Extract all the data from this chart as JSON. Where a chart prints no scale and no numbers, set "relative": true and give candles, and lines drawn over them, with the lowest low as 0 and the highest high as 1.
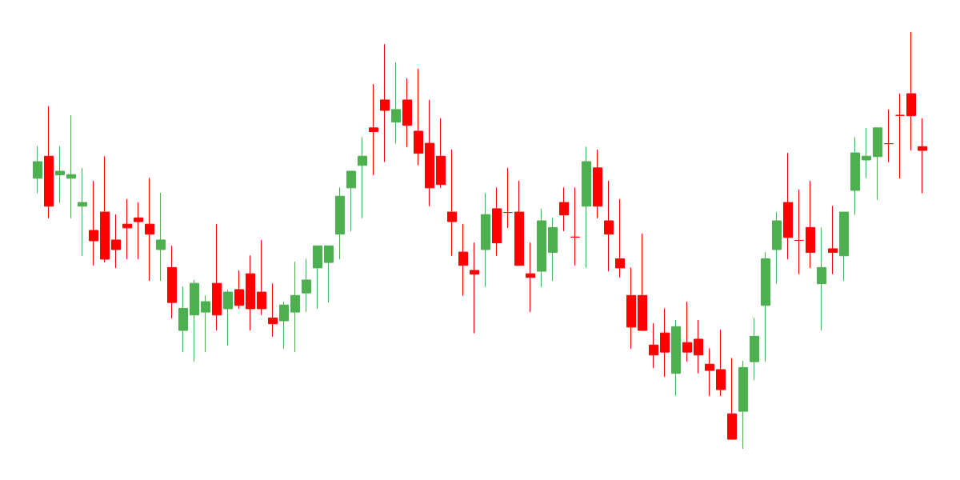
{
  "chart_data": {
    "type": "candlestick",
    "relative": true,
    "grid": false,
    "categories": [
      null,
      null,
      null,
      null,
      null,
      null,
      null,
      null,
      null,
      null,
      null,
      null,
      null,
      null,
      null,
      null,
      null,
      null,
      null,
      null,
      null,
      null,
      null,
      null,
      null,
      null,
      null,
      null,
      null,
      null,
      null,
      null,
      null,
      null,
      null,
      null,
      null,
      null,
      null,
      null,
      null,
      null,
      null,
      null,
      null,
      null,
      null,
      null,
      null,
      null,
      null,
      null,
      null,
      null,
      null,
      null,
      null,
      null,
      null,
      null,
      null,
      null,
      null,
      null,
      null,
      null,
      null,
      null,
      null,
      null,
      null,
      null,
      null,
      null,
      null,
      null,
      null,
      null,
      null,
      null
    ],
    "ohlc": [
      [
        0.649,
        0.726,
        0.613,
        0.689
      ],
      [
        0.702,
        0.822,
        0.553,
        0.582
      ],
      [
        0.657,
        0.726,
        0.59,
        0.666
      ],
      [
        0.649,
        0.8,
        0.553,
        0.658
      ],
      [
        0.582,
        0.674,
        0.463,
        0.591
      ],
      [
        0.524,
        0.643,
        0.44,
        0.499
      ],
      [
        0.568,
        0.702,
        0.447,
        0.455
      ],
      [
        0.501,
        0.562,
        0.434,
        0.478
      ],
      [
        0.539,
        0.599,
        0.455,
        0.53
      ],
      [
        0.554,
        0.591,
        0.455,
        0.545
      ],
      [
        0.539,
        0.65,
        0.403,
        0.515
      ],
      [
        0.478,
        0.614,
        0.403,
        0.501
      ],
      [
        0.435,
        0.487,
        0.313,
        0.351
      ],
      [
        0.284,
        0.389,
        0.232,
        0.337
      ],
      [
        0.321,
        0.405,
        0.209,
        0.397
      ],
      [
        0.328,
        0.368,
        0.232,
        0.353
      ],
      [
        0.397,
        0.539,
        0.284,
        0.321
      ],
      [
        0.336,
        0.382,
        0.248,
        0.376
      ],
      [
        0.382,
        0.428,
        0.336,
        0.344
      ],
      [
        0.42,
        0.464,
        0.284,
        0.336
      ],
      [
        0.376,
        0.501,
        0.321,
        0.336
      ],
      [
        0.314,
        0.397,
        0.269,
        0.3
      ],
      [
        0.307,
        0.353,
        0.24,
        0.345
      ],
      [
        0.328,
        0.449,
        0.232,
        0.368
      ],
      [
        0.374,
        0.456,
        0.328,
        0.405
      ],
      [
        0.434,
        0.487,
        0.336,
        0.487
      ],
      [
        0.447,
        0.487,
        0.351,
        0.487
      ],
      [
        0.515,
        0.627,
        0.455,
        0.606
      ],
      [
        0.626,
        0.666,
        0.522,
        0.666
      ],
      [
        0.68,
        0.748,
        0.553,
        0.702
      ],
      [
        0.77,
        0.875,
        0.657,
        0.761
      ],
      [
        0.837,
        0.971,
        0.688,
        0.812
      ],
      [
        0.784,
        0.927,
        0.732,
        0.814
      ],
      [
        0.837,
        0.889,
        0.724,
        0.776
      ],
      [
        0.762,
        0.912,
        0.68,
        0.709
      ],
      [
        0.733,
        0.837,
        0.582,
        0.626
      ],
      [
        0.702,
        0.793,
        0.626,
        0.634
      ],
      [
        0.568,
        0.718,
        0.463,
        0.545
      ],
      [
        0.472,
        0.539,
        0.367,
        0.44
      ],
      [
        0.428,
        0.495,
        0.277,
        0.419
      ],
      [
        0.478,
        0.614,
        0.388,
        0.562
      ],
      [
        0.576,
        0.627,
        0.463,
        0.494
      ],
      [
        0.567,
        0.674,
        0.53,
        0.567
      ],
      [
        0.568,
        0.643,
        0.44,
        0.44
      ],
      [
        0.42,
        0.495,
        0.328,
        0.411
      ],
      [
        0.426,
        0.576,
        0.388,
        0.547
      ],
      [
        0.471,
        0.554,
        0.403,
        0.531
      ],
      [
        0.591,
        0.627,
        0.522,
        0.561
      ],
      [
        0.508,
        0.627,
        0.44,
        0.508
      ],
      [
        0.582,
        0.725,
        0.434,
        0.689
      ],
      [
        0.674,
        0.718,
        0.553,
        0.582
      ],
      [
        0.547,
        0.643,
        0.426,
        0.515
      ],
      [
        0.456,
        0.599,
        0.411,
        0.434
      ],
      [
        0.368,
        0.435,
        0.24,
        0.292
      ],
      [
        0.368,
        0.516,
        0.284,
        0.284
      ],
      [
        0.249,
        0.301,
        0.194,
        0.225
      ],
      [
        0.278,
        0.337,
        0.173,
        0.232
      ],
      [
        0.181,
        0.309,
        0.127,
        0.293
      ],
      [
        0.255,
        0.353,
        0.209,
        0.232
      ],
      [
        0.263,
        0.309,
        0.181,
        0.225
      ],
      [
        0.203,
        0.241,
        0.127,
        0.188
      ],
      [
        0.19,
        0.286,
        0.127,
        0.142
      ],
      [
        0.084,
        0.218,
        0.023,
        0.023
      ],
      [
        0.09,
        0.211,
        0.0,
        0.195
      ],
      [
        0.209,
        0.314,
        0.165,
        0.27
      ],
      [
        0.344,
        0.472,
        0.209,
        0.456
      ],
      [
        0.478,
        0.568,
        0.396,
        0.547
      ],
      [
        0.591,
        0.71,
        0.455,
        0.507
      ],
      [
        0.5,
        0.622,
        0.419,
        0.5
      ],
      [
        0.531,
        0.643,
        0.434,
        0.471
      ],
      [
        0.396,
        0.531,
        0.284,
        0.435
      ],
      [
        0.48,
        0.583,
        0.419,
        0.471
      ],
      [
        0.463,
        0.568,
        0.403,
        0.568
      ],
      [
        0.62,
        0.748,
        0.561,
        0.71
      ],
      [
        0.693,
        0.77,
        0.649,
        0.702
      ],
      [
        0.701,
        0.77,
        0.597,
        0.77
      ],
      [
        0.732,
        0.814,
        0.688,
        0.732
      ],
      [
        0.8,
        0.852,
        0.649,
        0.8
      ],
      [
        0.852,
        1.0,
        0.716,
        0.799
      ],
      [
        0.725,
        0.793,
        0.613,
        0.716
      ]
    ],
    "colors": [
      "#4caf50",
      "#ff0000",
      "#4caf50",
      "#4caf50",
      "#4caf50",
      "#ff0000",
      "#ff0000",
      "#ff0000",
      "#ff0000",
      "#ff0000",
      "#ff0000",
      "#4caf50",
      "#ff0000",
      "#4caf50",
      "#4caf50",
      "#4caf50",
      "#ff0000",
      "#4caf50",
      "#ff0000",
      "#ff0000",
      "#ff0000",
      "#ff0000",
      "#4caf50",
      "#4caf50",
      "#4caf50",
      "#4caf50",
      "#4caf50",
      "#4caf50",
      "#4caf50",
      "#4caf50",
      "#ff0000",
      "#ff0000",
      "#4caf50",
      "#ff0000",
      "#ff0000",
      "#ff0000",
      "#ff0000",
      "#ff0000",
      "#ff0000",
      "#ff0000",
      "#4caf50",
      "#ff0000",
      "#ff0000",
      "#ff0000",
      "#ff0000",
      "#4caf50",
      "#4caf50",
      "#ff0000",
      "#ff0000",
      "#4caf50",
      "#ff0000",
      "#ff0000",
      "#ff0000",
      "#ff0000",
      "#ff0000",
      "#ff0000",
      "#ff0000",
      "#4caf50",
      "#ff0000",
      "#ff0000",
      "#ff0000",
      "#ff0000",
      "#ff0000",
      "#4caf50",
      "#4caf50",
      "#4caf50",
      "#4caf50",
      "#ff0000",
      "#ff0000",
      "#ff0000",
      "#4caf50",
      "#ff0000",
      "#4caf50",
      "#4caf50",
      "#4caf50",
      "#4caf50",
      "#ff0000",
      "#ff0000",
      "#ff0000",
      "#ff0000"
    ]
  }
}
